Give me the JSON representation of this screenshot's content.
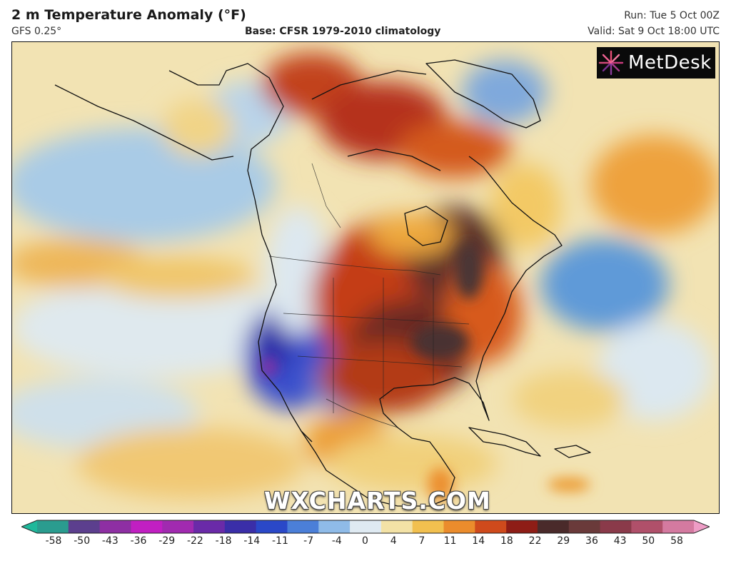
{
  "header": {
    "title": "2 m Temperature Anomaly (°F)",
    "model": "GFS 0.25°",
    "base": "Base: CFSR 1979-2010 climatology",
    "run": "Run: Tue 5 Oct 00Z",
    "valid": "Valid: Sat 9 Oct 18:00 UTC"
  },
  "logo": {
    "text": "MetDesk",
    "icon": "metdesk-burst-icon"
  },
  "watermark": "WXCHARTS.COM",
  "colorbar": {
    "ticks": [
      "-58",
      "-50",
      "-43",
      "-36",
      "-29",
      "-22",
      "-18",
      "-14",
      "-11",
      "-7",
      "-4",
      "0",
      "4",
      "7",
      "11",
      "14",
      "18",
      "22",
      "29",
      "36",
      "43",
      "50",
      "58"
    ],
    "colors": [
      "#1fb89b",
      "#2a9c8f",
      "#5c3f8e",
      "#8e2fa3",
      "#c11fc2",
      "#a12ab0",
      "#6a2aa8",
      "#3a2ea8",
      "#2a48c8",
      "#4b7fd8",
      "#8fbbe8",
      "#dfeaf2",
      "#f3e2a6",
      "#f2c04f",
      "#eb8c2c",
      "#cf4a1c",
      "#8e1d16",
      "#4a2a2a",
      "#6a3a3a",
      "#8a3a4a",
      "#b0506a",
      "#d47aa0",
      "#ee9dc6"
    ]
  }
}
